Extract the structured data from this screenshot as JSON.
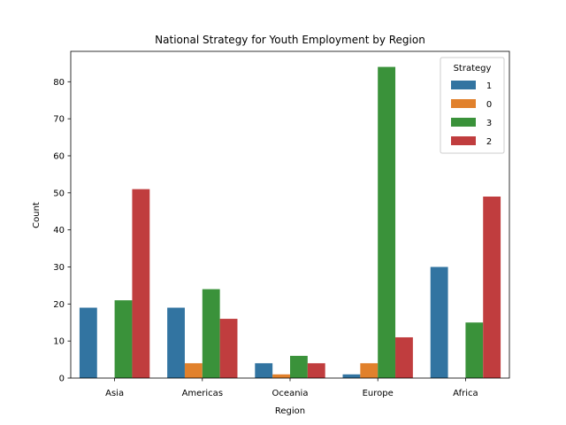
{
  "chart_data": {
    "type": "bar",
    "title": "National Strategy for Youth Employment by Region",
    "xlabel": "Region",
    "ylabel": "Count",
    "categories": [
      "Asia",
      "Americas",
      "Oceania",
      "Europe",
      "Africa"
    ],
    "ylim": [
      0,
      88.2
    ],
    "yticks": [
      0,
      10,
      20,
      30,
      40,
      50,
      60,
      70,
      80
    ],
    "legend": {
      "title": "Strategy",
      "placement": "top-right"
    },
    "grid": false,
    "series": [
      {
        "name": "1",
        "color": "#3274a1",
        "values": [
          19,
          19,
          4,
          1,
          30
        ]
      },
      {
        "name": "0",
        "color": "#e1812c",
        "values": [
          0,
          4,
          1,
          4,
          0
        ]
      },
      {
        "name": "3",
        "color": "#3a923a",
        "values": [
          21,
          24,
          6,
          84,
          15
        ]
      },
      {
        "name": "2",
        "color": "#c03d3e",
        "values": [
          51,
          16,
          4,
          11,
          49
        ]
      }
    ]
  }
}
